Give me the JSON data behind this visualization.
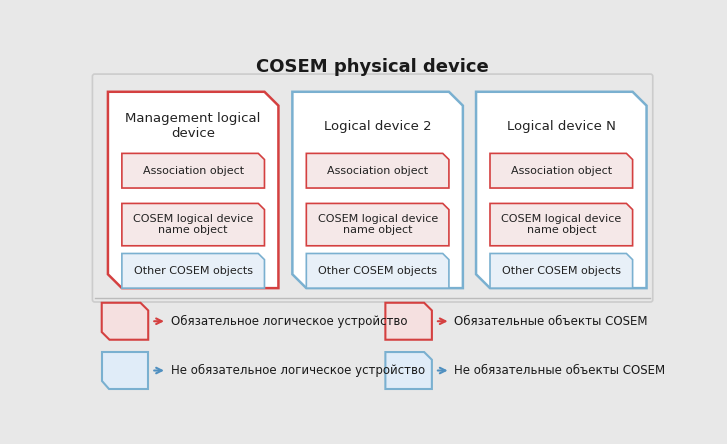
{
  "title": "COSEM physical device",
  "bg_color": "#e8e8e8",
  "outer_fill": "#e8e8e8",
  "outer_border": "#cccccc",
  "devices": [
    {
      "label": "Management logical\ndevice",
      "col": 0,
      "border_color": "#d44040",
      "fill_color": "#ffffff"
    },
    {
      "label": "Logical device 2",
      "col": 1,
      "border_color": "#7ab0d0",
      "fill_color": "#ffffff"
    },
    {
      "label": "Logical device N",
      "col": 2,
      "border_color": "#7ab0d0",
      "fill_color": "#ffffff"
    }
  ],
  "objects": [
    {
      "label": "Association object",
      "border_color": "#d44040",
      "fill_color": "#f5e8e8"
    },
    {
      "label": "COSEM logical device\nname object",
      "border_color": "#d44040",
      "fill_color": "#f5e8e8"
    },
    {
      "label": "Other COSEM objects",
      "border_color": "#7ab0d0",
      "fill_color": "#e8f0f8"
    }
  ],
  "legend": [
    {
      "row": 0,
      "col": 0,
      "border_color": "#d44040",
      "fill_color": "#f5e0e0",
      "arrow_color": "#d44040",
      "clip": "device",
      "text": "Обязательное логическое устройство"
    },
    {
      "row": 0,
      "col": 1,
      "border_color": "#d44040",
      "fill_color": "#f5e0e0",
      "arrow_color": "#d44040",
      "clip": "object",
      "text": "Обязательные объекты COSEM"
    },
    {
      "row": 1,
      "col": 0,
      "border_color": "#7ab0d0",
      "fill_color": "#e0ecf8",
      "arrow_color": "#5090c0",
      "clip": "device_bl",
      "text": "Не обязательное логическое устройство"
    },
    {
      "row": 1,
      "col": 1,
      "border_color": "#7ab0d0",
      "fill_color": "#e0ecf8",
      "arrow_color": "#5090c0",
      "clip": "object_br",
      "text": "Не обязательные объекты COSEM"
    }
  ]
}
